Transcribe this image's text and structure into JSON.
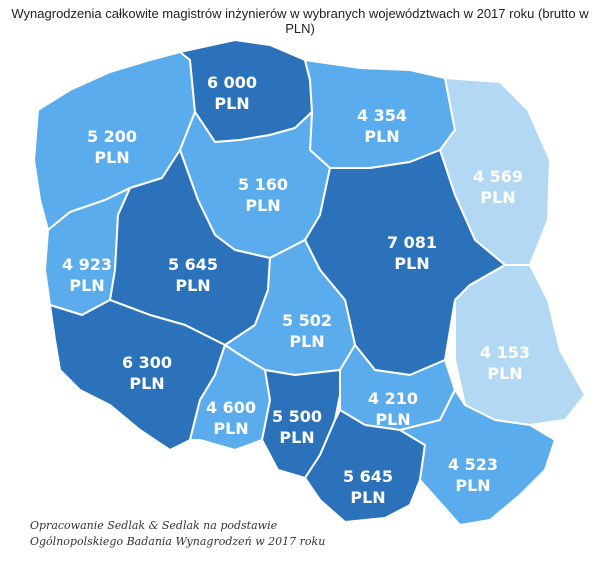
{
  "title": "Wynagrodzenia całkowite magistrów inżynierów w wybranych województwach w 2017 roku (brutto w PLN)",
  "colors": {
    "dark": "#2c72bb",
    "medium": "#5aacec",
    "light": "#b3d8f4",
    "border": "#ffffff"
  },
  "regions": [
    {
      "key": "pomorskie",
      "value": "6 000",
      "unit": "PLN",
      "shade": "dark"
    },
    {
      "key": "zachodniopomorskie",
      "value": "5 200",
      "unit": "PLN",
      "shade": "medium"
    },
    {
      "key": "warminsko-mazurskie",
      "value": "4 354",
      "unit": "PLN",
      "shade": "medium"
    },
    {
      "key": "podlaskie",
      "value": "4 569",
      "unit": "PLN",
      "shade": "light"
    },
    {
      "key": "kujawsko-pomorskie",
      "value": "5 160",
      "unit": "PLN",
      "shade": "medium"
    },
    {
      "key": "lubuskie",
      "value": "4 923",
      "unit": "PLN",
      "shade": "medium"
    },
    {
      "key": "wielkopolskie",
      "value": "5 645",
      "unit": "PLN",
      "shade": "dark"
    },
    {
      "key": "mazowieckie",
      "value": "7 081",
      "unit": "PLN",
      "shade": "dark"
    },
    {
      "key": "lodzkie",
      "value": "5 502",
      "unit": "PLN",
      "shade": "medium"
    },
    {
      "key": "lubelskie",
      "value": "4 153",
      "unit": "PLN",
      "shade": "light"
    },
    {
      "key": "dolnoslaskie",
      "value": "6 300",
      "unit": "PLN",
      "shade": "dark"
    },
    {
      "key": "opolskie",
      "value": "4 600",
      "unit": "PLN",
      "shade": "medium"
    },
    {
      "key": "slaskie",
      "value": "5 500",
      "unit": "PLN",
      "shade": "dark"
    },
    {
      "key": "swietokrzyskie",
      "value": "4 210",
      "unit": "PLN",
      "shade": "medium"
    },
    {
      "key": "malopolskie",
      "value": "5 645",
      "unit": "PLN",
      "shade": "dark"
    },
    {
      "key": "podkarpackie",
      "value": "4 523",
      "unit": "PLN",
      "shade": "medium"
    }
  ],
  "source": {
    "line1": "Opracowanie Sedlak & Sedlak na podstawie",
    "line2": "Ogólnopolskiego Badania Wynagrodzeń w 2017 roku"
  }
}
